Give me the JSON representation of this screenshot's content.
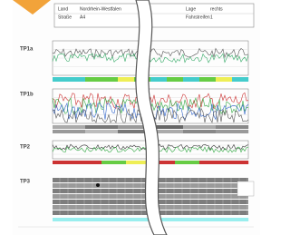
{
  "header": {
    "fields": [
      {
        "label": "Land",
        "value": "Nordrhein-Westfalen"
      },
      {
        "label": "Straße",
        "value": "A4"
      },
      {
        "label": "Lage",
        "value": "rechts"
      },
      {
        "label": "Fahrstreifen",
        "value": "1"
      }
    ]
  },
  "panels": [
    {
      "label": "TP1a"
    },
    {
      "label": "TP1b"
    },
    {
      "label": "TP2"
    },
    {
      "label": "TP3"
    }
  ]
}
